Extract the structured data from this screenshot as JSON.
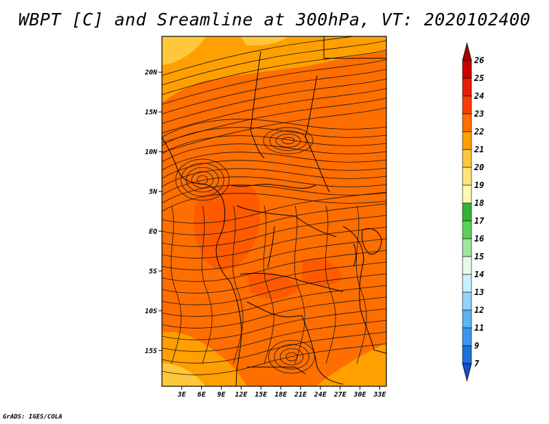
{
  "title": "WBPT [C] and Sreamline at 300hPa, VT: 2020102400",
  "credit": "GrADS: IGES/COLA",
  "map": {
    "lat_ticks": [
      "20N",
      "15N",
      "10N",
      "5N",
      "EQ",
      "5S",
      "10S",
      "15S"
    ],
    "lon_ticks": [
      "3E",
      "6E",
      "9E",
      "12E",
      "15E",
      "18E",
      "21E",
      "24E",
      "27E",
      "30E",
      "33E"
    ],
    "lon_range": [
      0,
      34
    ],
    "lat_range": [
      -19.5,
      24.5
    ],
    "fields": {
      "background_color": "#ff6e00",
      "warm_core_color": "#ff5a00",
      "cool_edge_color": "#ffa000",
      "cold_corner_color": "#ffc83c"
    }
  },
  "colorbar": {
    "labels": [
      "26",
      "25",
      "24",
      "23",
      "22",
      "21",
      "20",
      "19",
      "18",
      "17",
      "16",
      "15",
      "14",
      "13",
      "12",
      "11",
      "9",
      "7"
    ],
    "colors": [
      "#a50000",
      "#c80000",
      "#e61e00",
      "#ff3c00",
      "#ff6e00",
      "#ffa000",
      "#ffc83c",
      "#ffe678",
      "#fffab4",
      "#32b432",
      "#5ad25a",
      "#a0e6a0",
      "#e6fae6",
      "#c8f0ff",
      "#96d2fa",
      "#5ab4f0",
      "#3c96f0",
      "#1e6edc",
      "#1450c8"
    ]
  }
}
